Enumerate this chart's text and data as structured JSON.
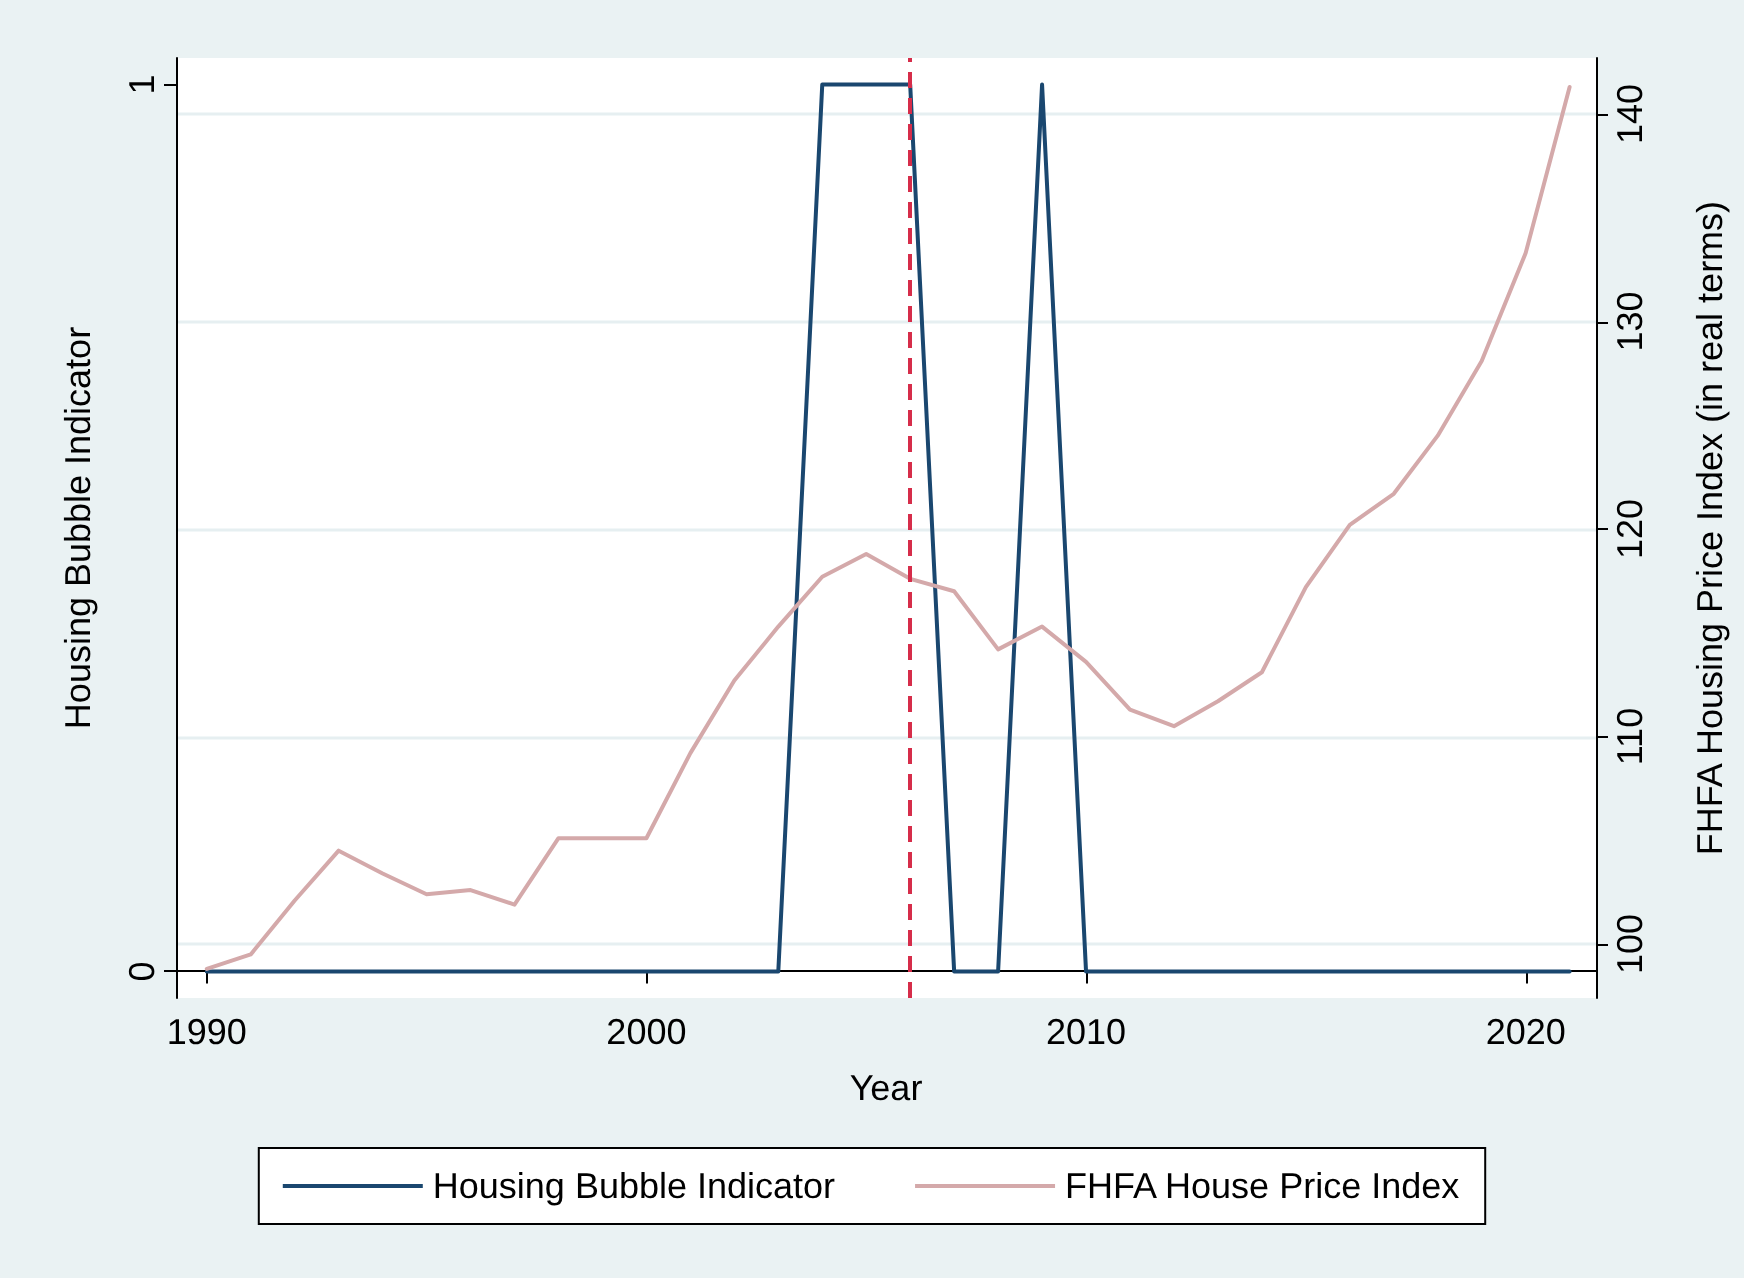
{
  "chart_data": {
    "type": "line",
    "xlabel": "Year",
    "ylabel": "Housing Bubble Indicator",
    "y2label": "FHFA Housing Price Index (in real terms)",
    "x": [
      1990,
      1991,
      1992,
      1993,
      1994,
      1995,
      1996,
      1997,
      1998,
      1999,
      2000,
      2001,
      2002,
      2003,
      2004,
      2005,
      2006,
      2007,
      2008,
      2009,
      2010,
      2011,
      2012,
      2013,
      2014,
      2015,
      2016,
      2017,
      2018,
      2019,
      2020,
      2021
    ],
    "series": [
      {
        "name": "Housing Bubble Indicator",
        "color": "#1a476f",
        "values": [
          0,
          0,
          0,
          0,
          0,
          0,
          0,
          0,
          0,
          0,
          0,
          0,
          0,
          0,
          1,
          1,
          1,
          0,
          0,
          1,
          0,
          0,
          0,
          0,
          0,
          0,
          0,
          0,
          0,
          0,
          0,
          0
        ]
      },
      {
        "name": "FHFA House Price Index",
        "color": "#d4a9aa",
        "axis": "y2",
        "values": [
          98.8,
          99.5,
          102.1,
          104.5,
          103.4,
          102.4,
          102.6,
          101.9,
          105.1,
          105.1,
          105.1,
          109.2,
          112.7,
          115.3,
          117.7,
          118.8,
          117.6,
          117.0,
          114.2,
          115.3,
          113.6,
          111.3,
          110.5,
          111.7,
          113.1,
          117.2,
          120.2,
          121.7,
          124.5,
          128.1,
          133.3,
          141.3
        ]
      }
    ],
    "xlim": [
      1989.3,
      2021.6
    ],
    "xticks": [
      1990,
      2000,
      2010,
      2020
    ],
    "ylim": [
      -0.03,
      1.03
    ],
    "yticks": [
      0,
      1
    ],
    "y2lim": [
      97.4,
      142.7
    ],
    "y2ticks": [
      100,
      110,
      120,
      130,
      140
    ],
    "ref_lines": [
      {
        "axis": "x",
        "value": 2006,
        "color": "#d62d4a",
        "line_style": "dashed"
      }
    ],
    "grid": "y",
    "legend": "bottom",
    "marker": "none",
    "line_style": "solid"
  }
}
